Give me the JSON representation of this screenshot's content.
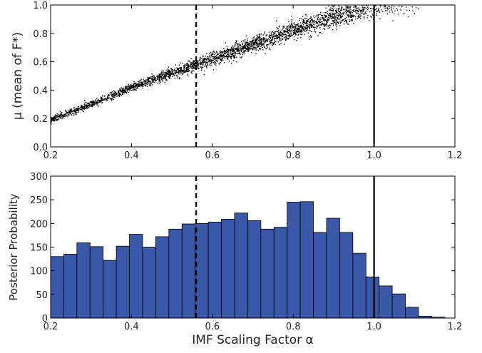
{
  "chart_data": [
    {
      "type": "scatter",
      "ylabel": "μ (mean of F*)",
      "xlabel": "",
      "xlim": [
        0.2,
        1.2
      ],
      "ylim": [
        0.0,
        1.0
      ],
      "xticks": [
        "0.2",
        "0.4",
        "0.6",
        "0.8",
        "1.0",
        "1.2"
      ],
      "yticks": [
        "0.0",
        "0.2",
        "0.4",
        "0.6",
        "0.8",
        "1.0"
      ],
      "trend": [
        {
          "x": 0.2,
          "y": 0.19
        },
        {
          "x": 0.3,
          "y": 0.3
        },
        {
          "x": 0.4,
          "y": 0.42
        },
        {
          "x": 0.5,
          "y": 0.52
        },
        {
          "x": 0.6,
          "y": 0.62
        },
        {
          "x": 0.7,
          "y": 0.72
        },
        {
          "x": 0.8,
          "y": 0.82
        },
        {
          "x": 0.9,
          "y": 0.91
        },
        {
          "x": 1.0,
          "y": 0.99
        }
      ],
      "reference_lines": [
        {
          "x": 0.56,
          "style": "dashed"
        },
        {
          "x": 1.0,
          "style": "solid"
        }
      ]
    },
    {
      "type": "bar",
      "ylabel": "Posterior Probability",
      "xlabel": "IMF Scaling Factor α",
      "xlim": [
        0.2,
        1.2
      ],
      "ylim": [
        0,
        300
      ],
      "xticks": [
        "0.2",
        "0.4",
        "0.6",
        "0.8",
        "1.0",
        "1.2"
      ],
      "yticks": [
        "0",
        "50",
        "100",
        "150",
        "200",
        "250",
        "300"
      ],
      "bin_start": 0.2,
      "bin_width": 0.0325,
      "values": [
        130,
        135,
        159,
        151,
        122,
        152,
        177,
        150,
        172,
        188,
        199,
        200,
        203,
        209,
        222,
        206,
        188,
        192,
        245,
        246,
        181,
        211,
        181,
        137,
        87,
        68,
        51,
        23,
        4,
        2
      ],
      "reference_lines": [
        {
          "x": 0.56,
          "style": "dashed"
        },
        {
          "x": 1.0,
          "style": "solid"
        }
      ]
    }
  ]
}
